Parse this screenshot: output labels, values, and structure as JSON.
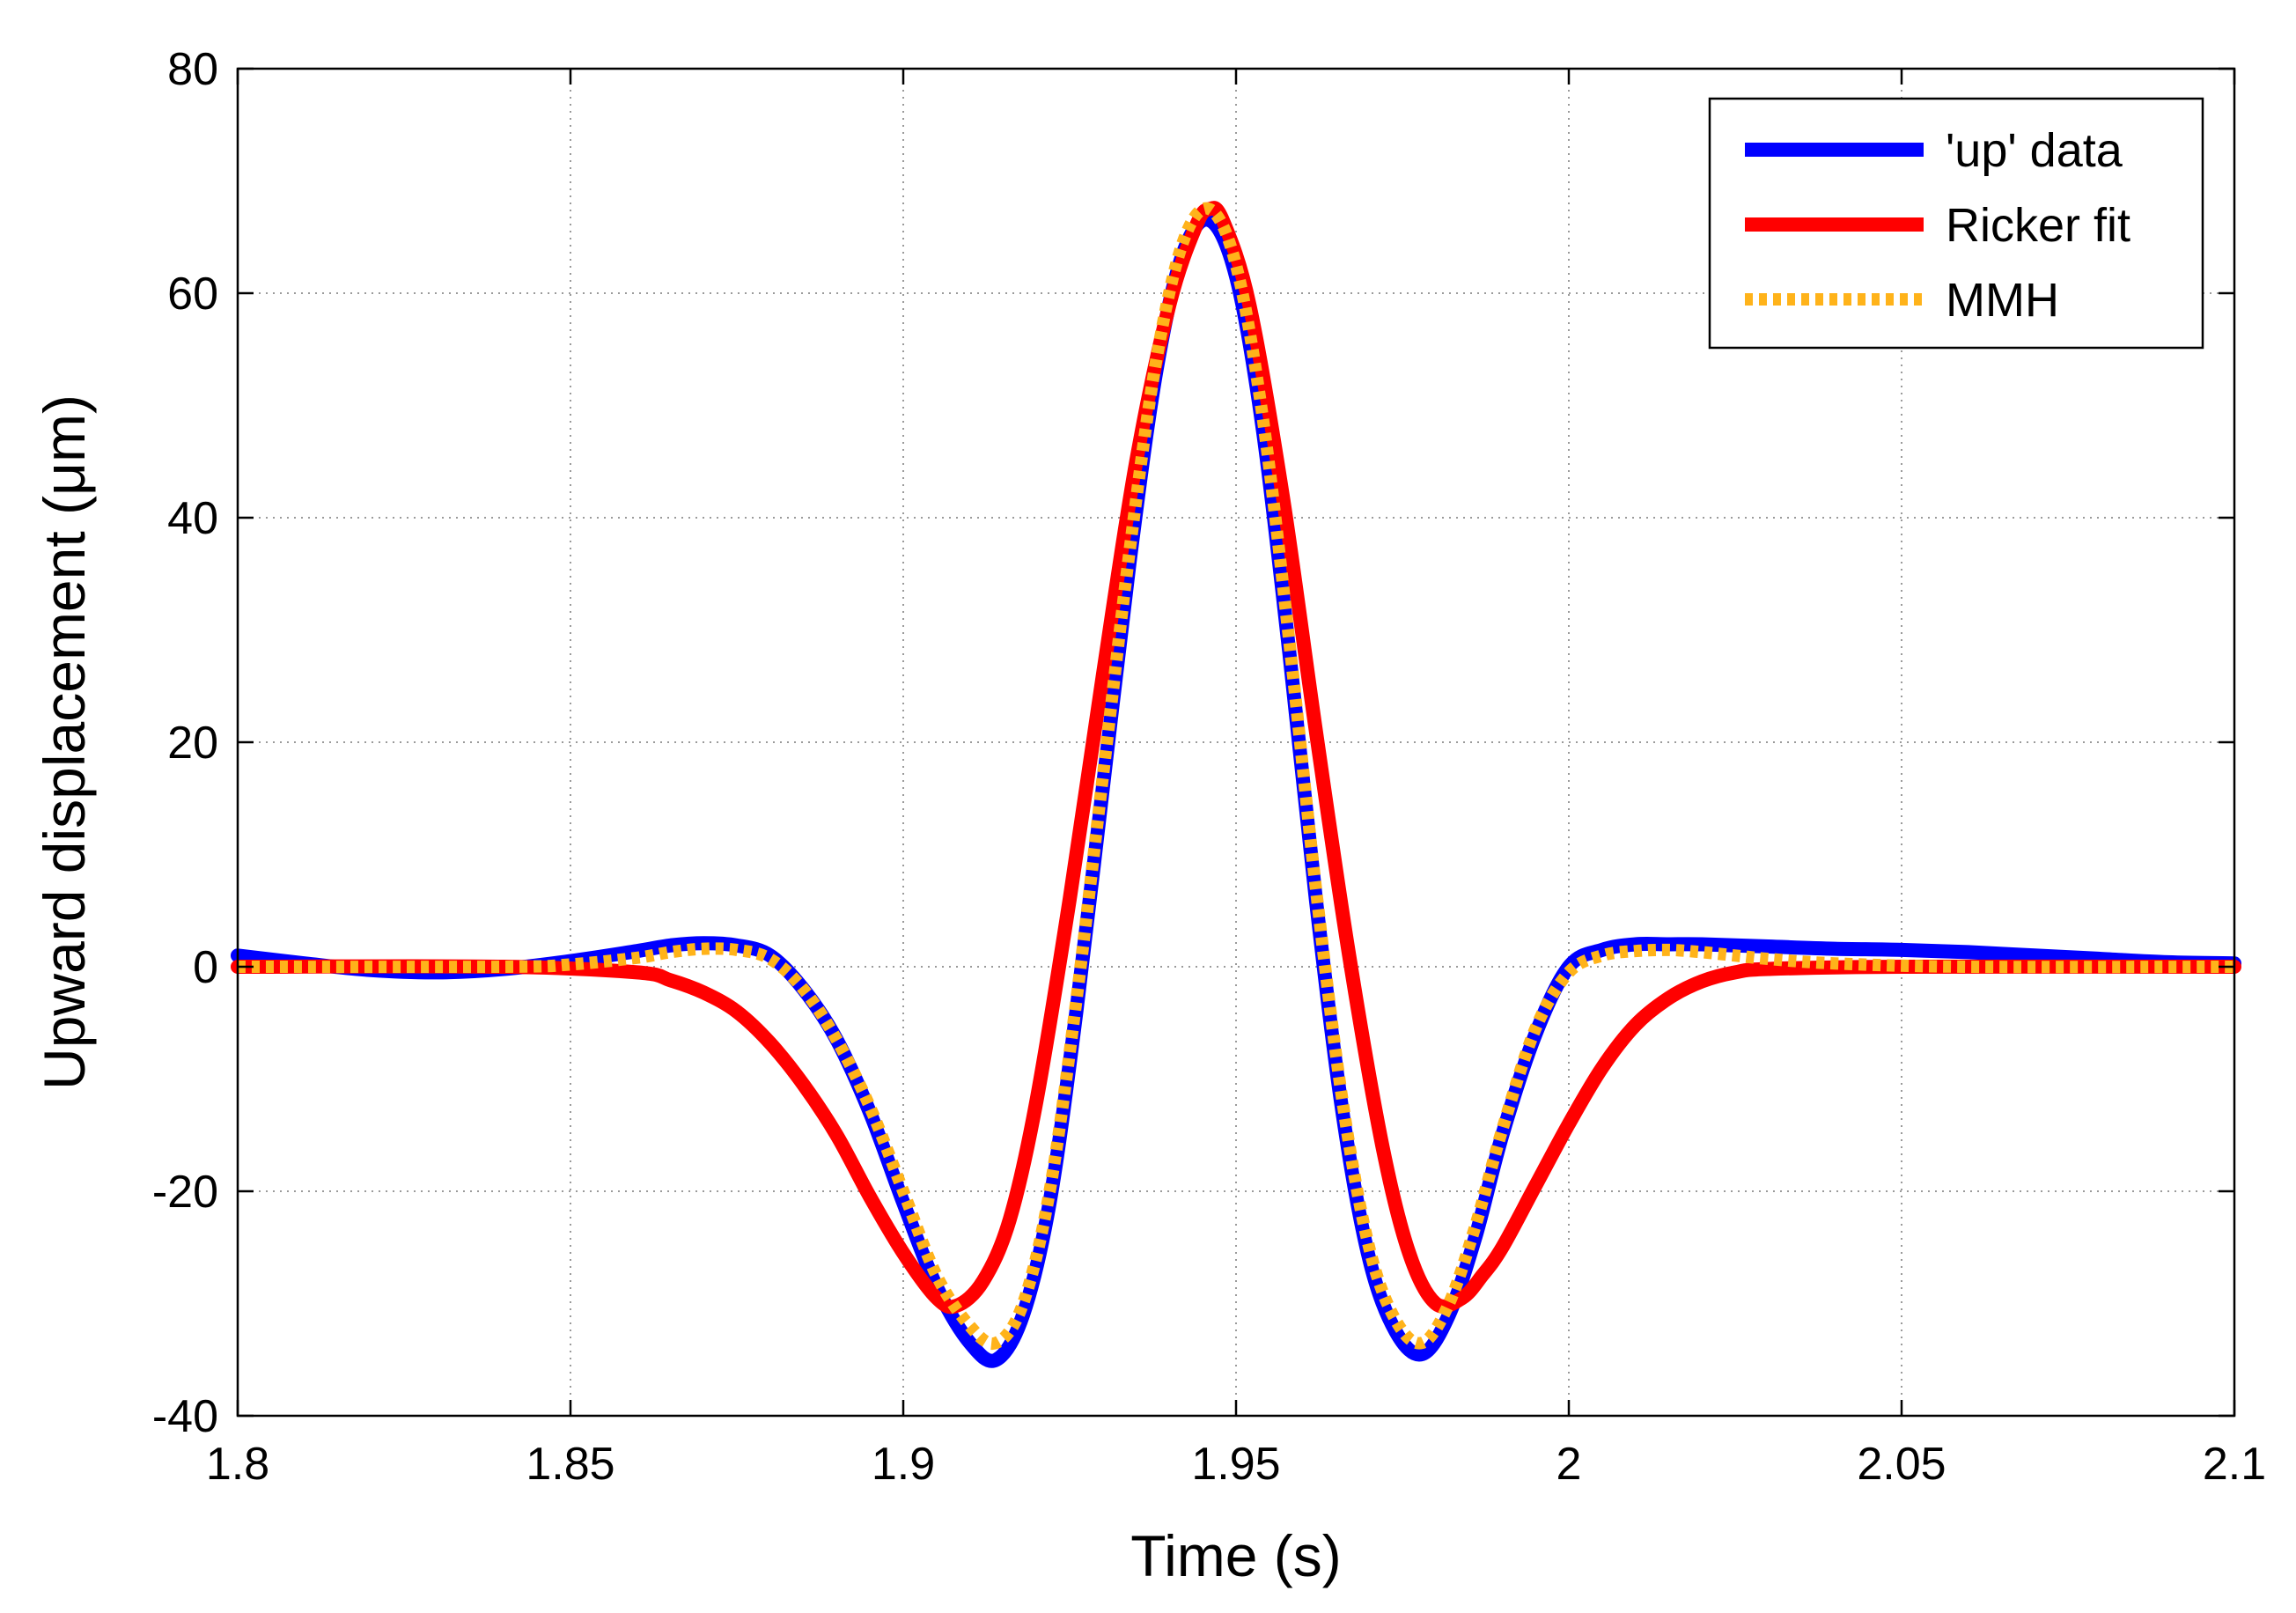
{
  "chart_data": {
    "type": "line",
    "title": "",
    "xlabel": "Time (s)",
    "ylabel": "Upward displacement (μm)",
    "xlim": [
      1.8,
      2.1
    ],
    "ylim": [
      -40,
      80
    ],
    "xticks": [
      1.8,
      1.85,
      1.9,
      1.95,
      2.0,
      2.05,
      2.1
    ],
    "xtick_labels": [
      "1.8",
      "1.85",
      "1.9",
      "1.95",
      "2",
      "2.05",
      "2.1"
    ],
    "yticks": [
      -40,
      -20,
      0,
      20,
      40,
      60,
      80
    ],
    "ytick_labels": [
      "-40",
      "-20",
      "0",
      "20",
      "40",
      "60",
      "80"
    ],
    "grid": true,
    "legend_position": "top-right",
    "series": [
      {
        "name": "'up' data",
        "color": "#0000ff",
        "style": "solid",
        "x": [
          1.8,
          1.81,
          1.82,
          1.83,
          1.84,
          1.85,
          1.86,
          1.865,
          1.87,
          1.875,
          1.88,
          1.885,
          1.89,
          1.895,
          1.9,
          1.905,
          1.91,
          1.914,
          1.918,
          1.922,
          1.926,
          1.93,
          1.934,
          1.938,
          1.942,
          1.946,
          1.95,
          1.954,
          1.958,
          1.962,
          1.966,
          1.97,
          1.974,
          1.978,
          1.982,
          1.986,
          1.99,
          1.995,
          2.0,
          2.005,
          2.01,
          2.015,
          2.02,
          2.03,
          2.04,
          2.05,
          2.06,
          2.07,
          2.08,
          2.09,
          2.1
        ],
        "y": [
          1.0,
          0.3,
          -0.3,
          -0.5,
          -0.2,
          0.5,
          1.4,
          1.9,
          2.1,
          1.9,
          1.0,
          -2.0,
          -6.5,
          -13.0,
          -21.0,
          -28.5,
          -33.5,
          -35.0,
          -31.0,
          -21.0,
          -4.0,
          16.0,
          36.0,
          53.0,
          63.5,
          66.5,
          61.5,
          48.0,
          28.0,
          6.0,
          -13.0,
          -26.0,
          -32.5,
          -34.5,
          -31.0,
          -24.0,
          -15.0,
          -6.0,
          0.0,
          1.5,
          2.0,
          2.0,
          2.0,
          1.8,
          1.6,
          1.5,
          1.3,
          1.0,
          0.7,
          0.4,
          0.3
        ]
      },
      {
        "name": "Ricker fit",
        "color": "#ff0000",
        "style": "solid",
        "x": [
          1.8,
          1.84,
          1.86,
          1.865,
          1.87,
          1.875,
          1.88,
          1.885,
          1.89,
          1.895,
          1.9,
          1.905,
          1.908,
          1.912,
          1.916,
          1.92,
          1.925,
          1.93,
          1.935,
          1.94,
          1.944,
          1.946,
          1.948,
          1.952,
          1.957,
          1.962,
          1.967,
          1.972,
          1.976,
          1.98,
          1.984,
          1.987,
          1.99,
          1.995,
          2.0,
          2.005,
          2.01,
          2.015,
          2.02,
          2.025,
          2.03,
          2.05,
          2.1
        ],
        "y": [
          0.0,
          0.0,
          -0.5,
          -1.2,
          -2.3,
          -4.0,
          -6.8,
          -10.5,
          -15.0,
          -20.5,
          -25.5,
          -29.5,
          -30.2,
          -28.0,
          -22.5,
          -12.0,
          6.0,
          26.0,
          45.0,
          59.0,
          66.0,
          67.5,
          66.5,
          59.0,
          42.0,
          21.0,
          1.0,
          -16.0,
          -25.5,
          -30.0,
          -29.5,
          -27.5,
          -25.0,
          -19.5,
          -14.0,
          -9.0,
          -5.2,
          -2.8,
          -1.3,
          -0.5,
          -0.2,
          0.0,
          0.0
        ]
      },
      {
        "name": "MMH",
        "color": "#ffb31a",
        "style": "dotted",
        "x": [
          1.8,
          1.84,
          1.85,
          1.86,
          1.865,
          1.87,
          1.875,
          1.88,
          1.885,
          1.89,
          1.895,
          1.9,
          1.905,
          1.91,
          1.914,
          1.918,
          1.922,
          1.926,
          1.93,
          1.934,
          1.938,
          1.942,
          1.946,
          1.95,
          1.954,
          1.958,
          1.962,
          1.966,
          1.97,
          1.974,
          1.978,
          1.982,
          1.986,
          1.99,
          1.995,
          2.0,
          2.005,
          2.01,
          2.015,
          2.02,
          2.025,
          2.03,
          2.04,
          2.06,
          2.1
        ],
        "y": [
          0.0,
          0.0,
          0.2,
          0.8,
          1.3,
          1.6,
          1.5,
          0.7,
          -2.0,
          -6.5,
          -12.5,
          -20.0,
          -27.5,
          -32.0,
          -33.5,
          -30.0,
          -20.0,
          -3.0,
          17.0,
          37.0,
          54.0,
          64.5,
          67.5,
          62.5,
          49.0,
          29.0,
          7.0,
          -12.0,
          -25.0,
          -31.5,
          -33.5,
          -30.0,
          -23.0,
          -14.5,
          -5.5,
          -0.5,
          1.0,
          1.4,
          1.5,
          1.3,
          1.0,
          0.7,
          0.3,
          0.0,
          0.0
        ]
      }
    ]
  }
}
